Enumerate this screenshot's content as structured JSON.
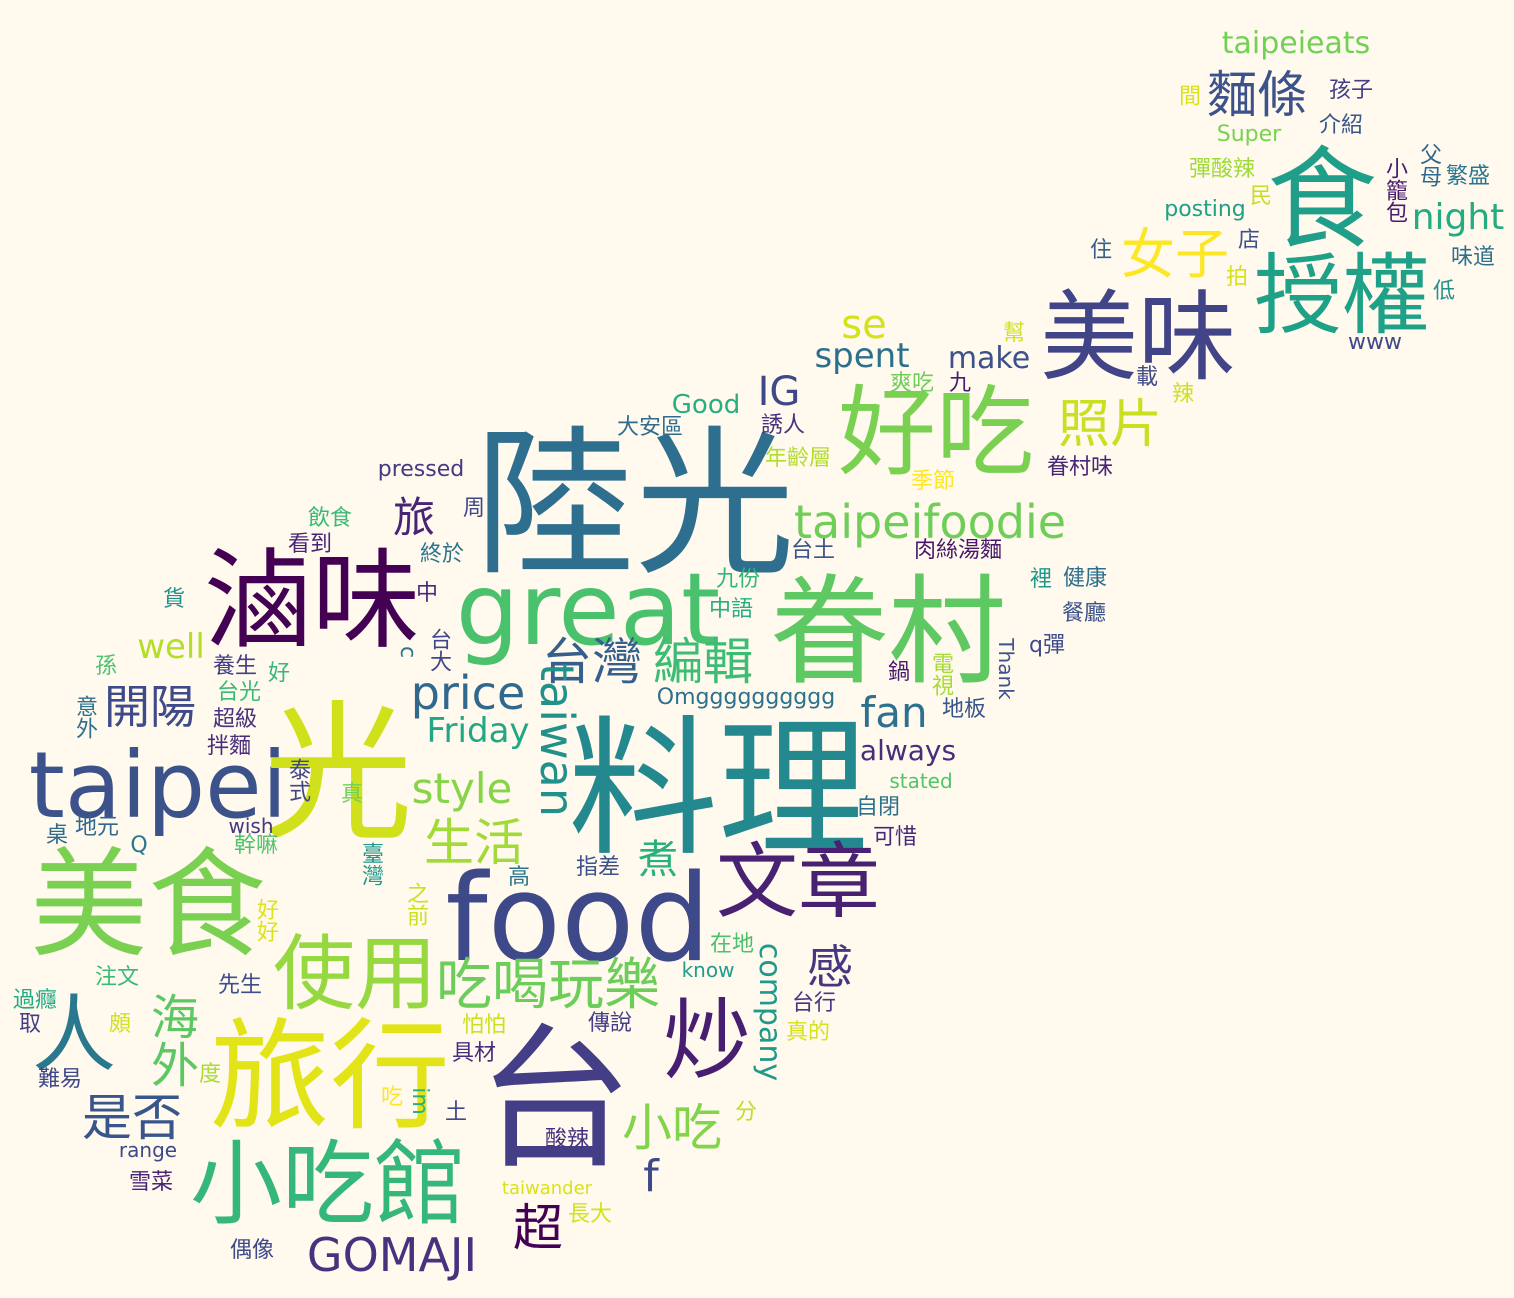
{
  "words": [
    {
      "text": "陸光",
      "color": "#2e6e8e"
    },
    {
      "text": "料理",
      "color": "#23898e"
    },
    {
      "text": "眷村",
      "color": "#5ec962"
    },
    {
      "text": "台",
      "color": "#433e85"
    },
    {
      "text": "美食",
      "color": "#7ad151"
    },
    {
      "text": "旅行",
      "color": "#e2e418"
    },
    {
      "text": "小吃館",
      "color": "#35b779"
    },
    {
      "text": "滷味",
      "color": "#440154"
    },
    {
      "text": "great",
      "color": "#4ac16d"
    },
    {
      "text": "food",
      "color": "#3e4989"
    },
    {
      "text": "好吃",
      "color": "#7ad151"
    },
    {
      "text": "美味",
      "color": "#414487"
    },
    {
      "text": "授權",
      "color": "#1fa188"
    },
    {
      "text": "食",
      "color": "#1f9e89"
    },
    {
      "text": "taipei",
      "color": "#3b528b"
    },
    {
      "text": "文章",
      "color": "#482173"
    },
    {
      "text": "使用",
      "color": "#95d840"
    },
    {
      "text": "炒",
      "color": "#481f70"
    },
    {
      "text": "人",
      "color": "#2a788e"
    },
    {
      "text": "光",
      "color": "#d0e11c"
    },
    {
      "text": "吃喝玩樂",
      "color": "#6ccd5a"
    },
    {
      "text": "台灣",
      "color": "#355f8d"
    },
    {
      "text": "編輯",
      "color": "#3dbc74"
    },
    {
      "text": "price",
      "color": "#31688e"
    },
    {
      "text": "taipeifoodie",
      "color": "#6ece58"
    },
    {
      "text": "女子",
      "color": "#fde725"
    },
    {
      "text": "照片",
      "color": "#c8e020"
    },
    {
      "text": "GOMAJI",
      "color": "#46327e"
    },
    {
      "text": "麵條",
      "color": "#3b528b"
    },
    {
      "text": "style",
      "color": "#86d549"
    },
    {
      "text": "生活",
      "color": "#a2da37"
    },
    {
      "text": "開陽",
      "color": "#3e4a89"
    },
    {
      "text": "是否",
      "color": "#39568c"
    },
    {
      "text": "小吃",
      "color": "#84d44b"
    },
    {
      "text": "taiwan",
      "color": "#21918c"
    },
    {
      "text": "fan",
      "color": "#2c718e"
    },
    {
      "text": "超",
      "color": "#440154"
    },
    {
      "text": "旅",
      "color": "#482475"
    },
    {
      "text": "海外",
      "color": "#5cc863"
    },
    {
      "text": "IG",
      "color": "#3e4989"
    },
    {
      "text": "se",
      "color": "#d5e21a"
    },
    {
      "text": "night",
      "color": "#25ab82"
    },
    {
      "text": "spent",
      "color": "#2d708e"
    },
    {
      "text": "感",
      "color": "#453781"
    },
    {
      "text": "煮",
      "color": "#2ab07f"
    },
    {
      "text": "Friday",
      "color": "#22a785"
    },
    {
      "text": "well",
      "color": "#b5de2b"
    },
    {
      "text": "always",
      "color": "#472d7b"
    },
    {
      "text": "make",
      "color": "#3b528b"
    },
    {
      "text": "taipeieats",
      "color": "#73d056"
    },
    {
      "text": "Good",
      "color": "#29af7f"
    },
    {
      "text": "company",
      "color": "#1f9a8a"
    },
    {
      "text": "f",
      "color": "#3e4989"
    },
    {
      "text": "pressed",
      "color": "#443983"
    },
    {
      "text": "Omgggggggggg",
      "color": "#2c728e"
    },
    {
      "text": "www",
      "color": "#3e4a89"
    },
    {
      "text": "posting",
      "color": "#1fa188"
    },
    {
      "text": "Super",
      "color": "#7ad151"
    },
    {
      "text": "stated",
      "color": "#52c569"
    },
    {
      "text": "Thank",
      "color": "#3b528b"
    },
    {
      "text": "know",
      "color": "#1f9e89"
    },
    {
      "text": "range",
      "color": "#3e4989"
    },
    {
      "text": "taiwander",
      "color": "#d8e219"
    },
    {
      "text": "wish",
      "color": "#453882"
    },
    {
      "text": "彈酸辣",
      "color": "#a0da39"
    },
    {
      "text": "孩子",
      "color": "#433e85"
    },
    {
      "text": "介紹",
      "color": "#38588c"
    },
    {
      "text": "間",
      "color": "#d8e219"
    },
    {
      "text": "小籠包",
      "color": "#481b6d"
    },
    {
      "text": "父母",
      "color": "#31688e"
    },
    {
      "text": "繁盛",
      "color": "#2b758e"
    },
    {
      "text": "民",
      "color": "#c2df23"
    },
    {
      "text": "店",
      "color": "#3b528b"
    },
    {
      "text": "住",
      "color": "#355e8d"
    },
    {
      "text": "味道",
      "color": "#2e6f8e"
    },
    {
      "text": "拍",
      "color": "#d8e219"
    },
    {
      "text": "低",
      "color": "#21918c"
    },
    {
      "text": "幫",
      "color": "#d2e21b"
    },
    {
      "text": "爽吃",
      "color": "#6ece58"
    },
    {
      "text": "九",
      "color": "#481b6d"
    },
    {
      "text": "載",
      "color": "#3e4a89"
    },
    {
      "text": "辣",
      "color": "#cde11d"
    },
    {
      "text": "大安區",
      "color": "#2f6c8e"
    },
    {
      "text": "誘人",
      "color": "#46337f"
    },
    {
      "text": "年齡層",
      "color": "#b2dd2d"
    },
    {
      "text": "季節",
      "color": "#fde725"
    },
    {
      "text": "眷村味",
      "color": "#482677"
    },
    {
      "text": "周",
      "color": "#3f4788"
    },
    {
      "text": "飲食",
      "color": "#3aba76"
    },
    {
      "text": "看到",
      "color": "#482576"
    },
    {
      "text": "終於",
      "color": "#2b758e"
    },
    {
      "text": "台土",
      "color": "#3b528b"
    },
    {
      "text": "肉絲湯麵",
      "color": "#481769"
    },
    {
      "text": "健康",
      "color": "#2d708e"
    },
    {
      "text": "裡",
      "color": "#1f9a8a"
    },
    {
      "text": "九份",
      "color": "#32b67a"
    },
    {
      "text": "中",
      "color": "#482979"
    },
    {
      "text": "中語",
      "color": "#26ad81"
    },
    {
      "text": "餐廳",
      "color": "#3b528b"
    },
    {
      "text": "q彈",
      "color": "#3e4a89"
    },
    {
      "text": "貨",
      "color": "#21918c"
    },
    {
      "text": "台大",
      "color": "#3e4989"
    },
    {
      "text": "養生",
      "color": "#433e85"
    },
    {
      "text": "好",
      "color": "#35b779"
    },
    {
      "text": "孫",
      "color": "#4ac16d"
    },
    {
      "text": "台光",
      "color": "#3aba76"
    },
    {
      "text": "鍋",
      "color": "#481b6d"
    },
    {
      "text": "電視",
      "color": "#a5db36"
    },
    {
      "text": "地板",
      "color": "#39568c"
    },
    {
      "text": "意外",
      "color": "#2c728e"
    },
    {
      "text": "超級",
      "color": "#46327e"
    },
    {
      "text": "拌麵",
      "color": "#472c7a"
    },
    {
      "text": "泰式",
      "color": "#3f4788"
    },
    {
      "text": "真",
      "color": "#70cf57"
    },
    {
      "text": "自閉",
      "color": "#2c718e"
    },
    {
      "text": "可惜",
      "color": "#482878"
    },
    {
      "text": "桌",
      "color": "#2f6b8e"
    },
    {
      "text": "地元",
      "color": "#31688e"
    },
    {
      "text": "幹嘛",
      "color": "#4ec36b"
    },
    {
      "text": "臺灣",
      "color": "#1f958b"
    },
    {
      "text": "指差",
      "color": "#3b528b"
    },
    {
      "text": "高",
      "color": "#2a768e"
    },
    {
      "text": "之前",
      "color": "#cae11f"
    },
    {
      "text": "好好",
      "color": "#dde318"
    },
    {
      "text": "在地",
      "color": "#4ac16d"
    },
    {
      "text": "注文",
      "color": "#3aba76"
    },
    {
      "text": "先生",
      "color": "#3d4e8a"
    },
    {
      "text": "台行",
      "color": "#453781"
    },
    {
      "text": "過癮",
      "color": "#23a983"
    },
    {
      "text": "取",
      "color": "#433e85"
    },
    {
      "text": "頗",
      "color": "#d2e21b"
    },
    {
      "text": "怕怕",
      "color": "#cae11f"
    },
    {
      "text": "傳說",
      "color": "#433e85"
    },
    {
      "text": "真的",
      "color": "#d5e21a"
    },
    {
      "text": "具材",
      "color": "#472d7b"
    },
    {
      "text": "難易",
      "color": "#3f4889"
    },
    {
      "text": "度",
      "color": "#a8db34"
    },
    {
      "text": "吃",
      "color": "#fde725"
    },
    {
      "text": "im",
      "color": "#2ab07f"
    },
    {
      "text": "土",
      "color": "#3e4989"
    },
    {
      "text": "分",
      "color": "#bddf26"
    },
    {
      "text": "酸辣",
      "color": "#46307e"
    },
    {
      "text": "雪菜",
      "color": "#482475"
    },
    {
      "text": "長大",
      "color": "#d2e21b"
    },
    {
      "text": "偶像",
      "color": "#3e4989"
    },
    {
      "text": "Q",
      "color": "#2a788e"
    },
    {
      "text": "c",
      "color": "#2a788e"
    }
  ]
}
